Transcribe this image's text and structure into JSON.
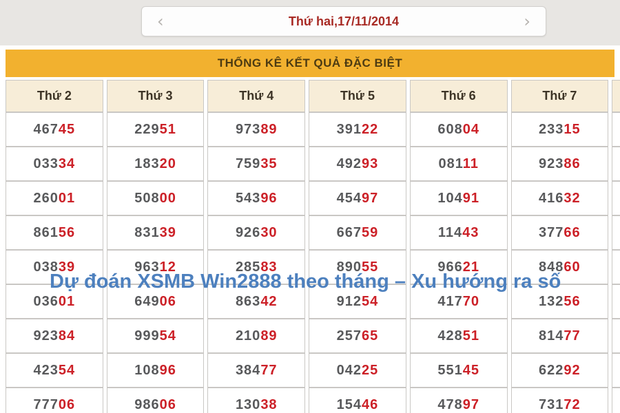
{
  "nav": {
    "prev_icon": "‹",
    "next_icon": "›",
    "date_label": "Thứ hai,17/11/2014"
  },
  "table": {
    "title": "THỐNG KÊ KẾT QUẢ ĐẶC BIỆT",
    "columns": [
      "Thứ 2",
      "Thứ 3",
      "Thứ 4",
      "Thứ 5",
      "Thứ 6",
      "Thứ 7"
    ],
    "rows": [
      [
        "46745",
        "22951",
        "97389",
        "39122",
        "60804",
        "23315"
      ],
      [
        "03334",
        "18320",
        "75935",
        "49293",
        "08111",
        "92386"
      ],
      [
        "26001",
        "50800",
        "54396",
        "45497",
        "10491",
        "41632"
      ],
      [
        "86156",
        "83139",
        "92630",
        "66759",
        "11443",
        "37766"
      ],
      [
        "03839",
        "96312",
        "28583",
        "89055",
        "96621",
        "84860"
      ],
      [
        "03601",
        "64906",
        "86342",
        "91254",
        "41770",
        "13256"
      ],
      [
        "92384",
        "99954",
        "21089",
        "25765",
        "42851",
        "81477"
      ],
      [
        "42354",
        "10896",
        "38477",
        "04225",
        "55145",
        "62292"
      ],
      [
        "77706",
        "98606",
        "13038",
        "15446",
        "47897",
        "73172"
      ]
    ],
    "digit_split": {
      "gray_leading_digits": 3,
      "red_trailing_digits": 2
    }
  },
  "watermark": {
    "text": "Dự đoán XSMB Win2888 theo tháng – Xu hướng ra số"
  },
  "colors": {
    "topbar_bg": "#e8e6e3",
    "banner_bg": "#f2b12f",
    "banner_text": "#4d3b12",
    "header_cell_bg": "#f7edd8",
    "date_text": "#a82a24",
    "digit_gray": "#58595b",
    "digit_red": "#cc2027",
    "watermark_blue": "#4d80be"
  }
}
